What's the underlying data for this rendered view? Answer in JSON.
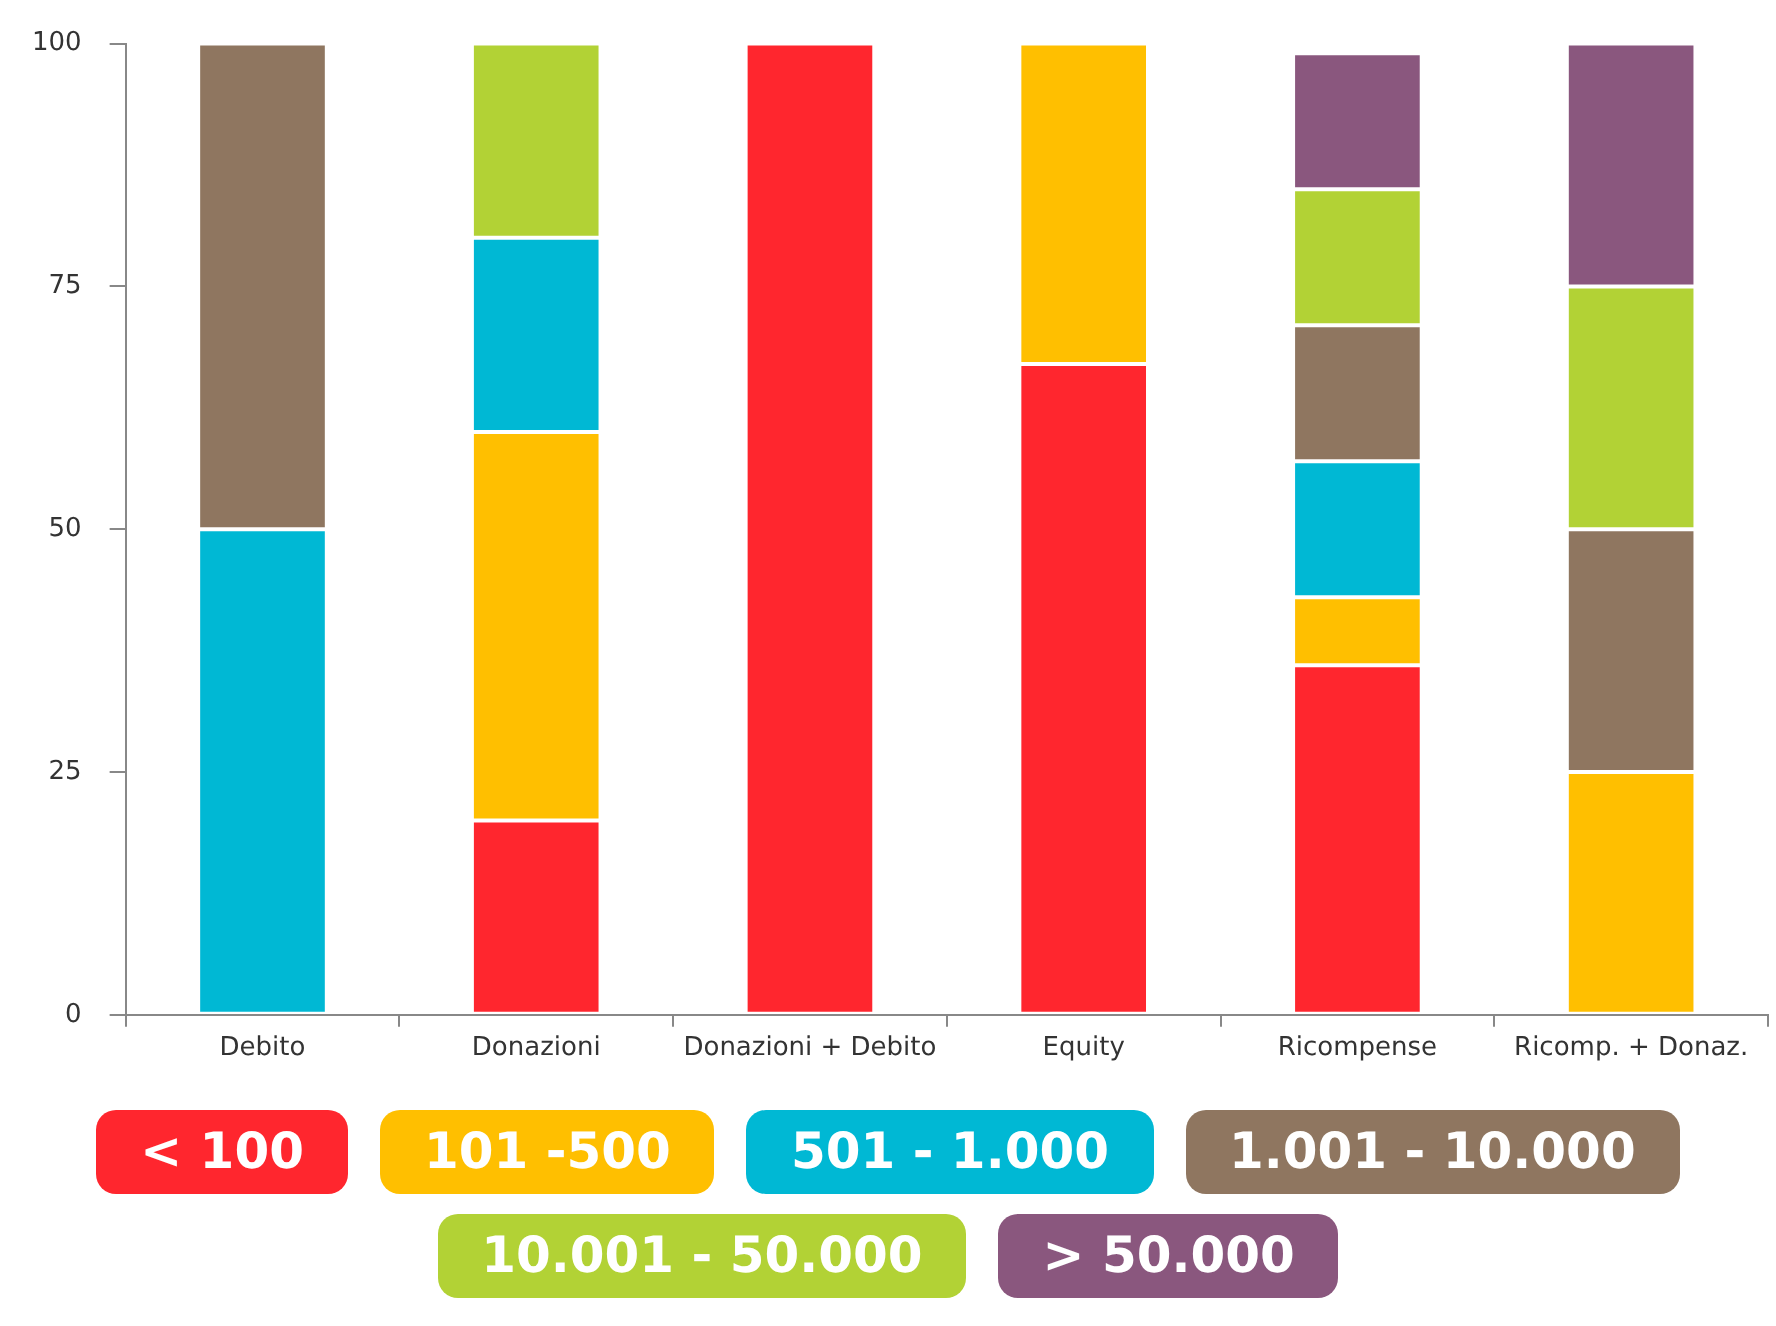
{
  "chart_data": {
    "type": "bar",
    "stacked": true,
    "categories": [
      "Debito",
      "Donazioni",
      "Donazioni + Debito",
      "Equity",
      "Ricompense",
      "Ricomp. + Donaz."
    ],
    "series": [
      {
        "name": "< 100",
        "color": "#ff262e",
        "values": [
          0,
          20,
          100,
          67,
          36,
          0
        ]
      },
      {
        "name": "101 -500",
        "color": "#ffbf00",
        "values": [
          0,
          40,
          0,
          33,
          7,
          25
        ]
      },
      {
        "name": "501 - 1.000",
        "color": "#00b8d4",
        "values": [
          50,
          20,
          0,
          0,
          14,
          0
        ]
      },
      {
        "name": "1.001 - 10.000",
        "color": "#8f7660",
        "values": [
          50,
          0,
          0,
          0,
          14,
          25
        ]
      },
      {
        "name": "10.001 - 50.000",
        "color": "#b2d235",
        "values": [
          0,
          20,
          0,
          0,
          14,
          25
        ]
      },
      {
        "name": "> 50.000",
        "color": "#8a577e",
        "values": [
          0,
          0,
          0,
          0,
          14,
          25
        ]
      }
    ],
    "ylim": [
      0,
      100
    ],
    "yticks": [
      0,
      25,
      50,
      75,
      100
    ],
    "grid": false,
    "legend": "bottom"
  }
}
